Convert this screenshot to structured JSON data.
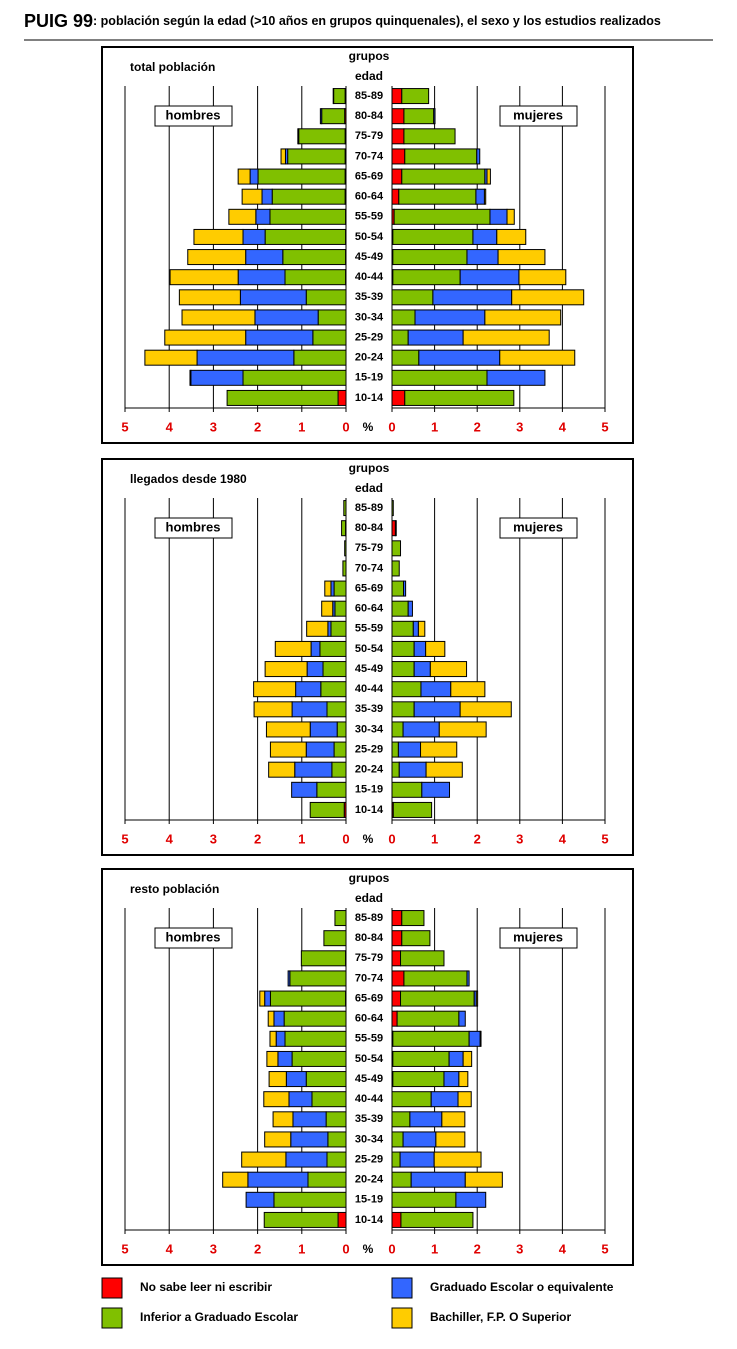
{
  "title": "PUIG 99",
  "subtitle": ": población según la edad (>10 años en grupos quinquenales), el sexo y los estudios realizados",
  "chart_data": [
    {
      "type": "pyramid",
      "title": "total población",
      "y_label": [
        "grupos",
        "edad"
      ],
      "x_label": "%",
      "left_label": "hombres",
      "right_label": "mujeres",
      "categories": [
        "85-89",
        "80-84",
        "75-79",
        "70-74",
        "65-69",
        "60-64",
        "55-59",
        "50-54",
        "45-49",
        "40-44",
        "35-39",
        "30-34",
        "25-29",
        "20-24",
        "15-19",
        "10-14"
      ],
      "xlim": [
        0,
        5
      ],
      "xticks": [
        0,
        1,
        2,
        3,
        4,
        5
      ],
      "grid": true,
      "series": [
        {
          "name": "No sabe leer ni escribir",
          "color": "#ff0000",
          "men": [
            0.02,
            0.03,
            0.02,
            0.02,
            0.02,
            0.02,
            0.01,
            0.01,
            0.01,
            0.01,
            0,
            0,
            0,
            0,
            0,
            0.18
          ],
          "women": [
            0.23,
            0.28,
            0.28,
            0.3,
            0.23,
            0.16,
            0.05,
            0.02,
            0.02,
            0.02,
            0,
            0,
            0,
            0,
            0,
            0.3
          ]
        },
        {
          "name": "Inferior a Graduado Escolar",
          "color": "#80c000",
          "men": [
            0.26,
            0.52,
            1.05,
            1.3,
            1.97,
            1.65,
            1.71,
            1.82,
            1.42,
            1.37,
            0.9,
            0.63,
            0.75,
            1.18,
            2.33,
            2.51
          ],
          "women": [
            0.63,
            0.7,
            1.2,
            1.69,
            1.95,
            1.81,
            2.25,
            1.88,
            1.74,
            1.58,
            0.96,
            0.54,
            0.38,
            0.63,
            2.23,
            2.56
          ]
        },
        {
          "name": "Graduado Escolar o equivalente",
          "color": "#3366ff",
          "men": [
            0.01,
            0.03,
            0.02,
            0.05,
            0.18,
            0.23,
            0.32,
            0.5,
            0.84,
            1.06,
            1.49,
            1.43,
            1.52,
            2.19,
            1.18,
            0
          ],
          "women": [
            0,
            0.03,
            0,
            0.07,
            0.05,
            0.2,
            0.4,
            0.56,
            0.73,
            1.38,
            1.85,
            1.64,
            1.29,
            1.9,
            1.36,
            0
          ]
        },
        {
          "name": "Bachiller, F.P. O Superior",
          "color": "#ffcc00",
          "men": [
            0,
            0,
            0,
            0.1,
            0.27,
            0.45,
            0.61,
            1.11,
            1.31,
            1.54,
            1.38,
            1.65,
            1.83,
            1.18,
            0.02,
            0
          ],
          "women": [
            0,
            0,
            0,
            0,
            0.08,
            0.03,
            0.17,
            0.68,
            1.1,
            1.1,
            1.69,
            1.78,
            2.02,
            1.76,
            0,
            0
          ]
        }
      ]
    },
    {
      "type": "pyramid",
      "title": "llegados desde 1980",
      "y_label": [
        "grupos",
        "edad"
      ],
      "x_label": "%",
      "left_label": "hombres",
      "right_label": "mujeres",
      "categories": [
        "85-89",
        "80-84",
        "75-79",
        "70-74",
        "65-69",
        "60-64",
        "55-59",
        "50-54",
        "45-49",
        "40-44",
        "35-39",
        "30-34",
        "25-29",
        "20-24",
        "15-19",
        "10-14"
      ],
      "xlim": [
        0,
        5
      ],
      "xticks": [
        0,
        1,
        2,
        3,
        4,
        5
      ],
      "grid": true,
      "series": [
        {
          "name": "No sabe leer ni escribir",
          "color": "#ff0000",
          "men": [
            0,
            0.01,
            0,
            0,
            0,
            0,
            0,
            0,
            0,
            0,
            0,
            0,
            0,
            0,
            0,
            0.04
          ],
          "women": [
            0,
            0.08,
            0,
            0,
            0,
            0,
            0,
            0,
            0,
            0,
            0,
            0,
            0,
            0,
            0,
            0.03
          ]
        },
        {
          "name": "Inferior a Graduado Escolar",
          "color": "#80c000",
          "men": [
            0.05,
            0.09,
            0.03,
            0.07,
            0.27,
            0.25,
            0.34,
            0.59,
            0.52,
            0.57,
            0.43,
            0.2,
            0.27,
            0.32,
            0.66,
            0.77
          ],
          "women": [
            0.03,
            0.02,
            0.2,
            0.17,
            0.27,
            0.38,
            0.5,
            0.52,
            0.52,
            0.68,
            0.52,
            0.26,
            0.15,
            0.17,
            0.7,
            0.9
          ]
        },
        {
          "name": "Graduado Escolar o equivalente",
          "color": "#3366ff",
          "men": [
            0,
            0,
            0,
            0,
            0.07,
            0.05,
            0.07,
            0.2,
            0.36,
            0.57,
            0.79,
            0.61,
            0.63,
            0.84,
            0.57,
            0
          ],
          "women": [
            0,
            0,
            0,
            0,
            0.05,
            0.1,
            0.12,
            0.27,
            0.38,
            0.7,
            1.08,
            0.85,
            0.52,
            0.63,
            0.65,
            0
          ]
        },
        {
          "name": "Bachiller, F.P. O Superior",
          "color": "#ffcc00",
          "men": [
            0,
            0,
            0,
            0,
            0.14,
            0.25,
            0.48,
            0.81,
            0.95,
            0.95,
            0.86,
            0.99,
            0.81,
            0.59,
            0,
            0
          ],
          "women": [
            0,
            0,
            0,
            0,
            0,
            0,
            0.15,
            0.45,
            0.85,
            0.8,
            1.2,
            1.1,
            0.85,
            0.85,
            0,
            0
          ]
        }
      ]
    },
    {
      "type": "pyramid",
      "title": "resto población",
      "y_label": [
        "grupos",
        "edad"
      ],
      "x_label": "%",
      "left_label": "hombres",
      "right_label": "mujeres",
      "categories": [
        "85-89",
        "80-84",
        "75-79",
        "70-74",
        "65-69",
        "60-64",
        "55-59",
        "50-54",
        "45-49",
        "40-44",
        "35-39",
        "30-34",
        "25-29",
        "20-24",
        "15-19",
        "10-14"
      ],
      "xlim": [
        0,
        5
      ],
      "xticks": [
        0,
        1,
        2,
        3,
        4,
        5
      ],
      "grid": true,
      "series": [
        {
          "name": "No sabe leer ni escribir",
          "color": "#ff0000",
          "men": [
            0,
            0,
            0.01,
            0,
            0.01,
            0,
            0,
            0,
            0,
            0,
            0,
            0,
            0,
            0,
            0,
            0.18
          ],
          "women": [
            0.23,
            0.23,
            0.2,
            0.28,
            0.2,
            0.12,
            0.02,
            0.02,
            0.02,
            0,
            0,
            0,
            0,
            0,
            0,
            0.21
          ]
        },
        {
          "name": "Inferior a Graduado Escolar",
          "color": "#80c000",
          "men": [
            0.25,
            0.5,
            1.0,
            1.27,
            1.7,
            1.4,
            1.38,
            1.22,
            0.9,
            0.77,
            0.45,
            0.41,
            0.43,
            0.86,
            1.63,
            1.67
          ],
          "women": [
            0.52,
            0.66,
            1.02,
            1.48,
            1.73,
            1.45,
            1.79,
            1.32,
            1.2,
            0.92,
            0.42,
            0.26,
            0.19,
            0.45,
            1.5,
            1.69
          ]
        },
        {
          "name": "Graduado Escolar o equivalente",
          "color": "#3366ff",
          "men": [
            0,
            0,
            0,
            0.04,
            0.13,
            0.23,
            0.2,
            0.32,
            0.45,
            0.52,
            0.75,
            0.84,
            0.93,
            1.36,
            0.63,
            0
          ],
          "women": [
            0,
            0,
            0,
            0.05,
            0.05,
            0.15,
            0.26,
            0.33,
            0.35,
            0.63,
            0.75,
            0.77,
            0.8,
            1.27,
            0.7,
            0
          ]
        },
        {
          "name": "Bachiller, F.P. O Superior",
          "color": "#ffcc00",
          "men": [
            0,
            0,
            0,
            0,
            0.11,
            0.13,
            0.14,
            0.25,
            0.39,
            0.57,
            0.45,
            0.59,
            1.0,
            0.57,
            0,
            0
          ],
          "women": [
            0,
            0,
            0,
            0,
            0.03,
            0,
            0.02,
            0.2,
            0.21,
            0.31,
            0.54,
            0.68,
            1.1,
            0.87,
            0,
            0
          ]
        }
      ]
    }
  ]
}
